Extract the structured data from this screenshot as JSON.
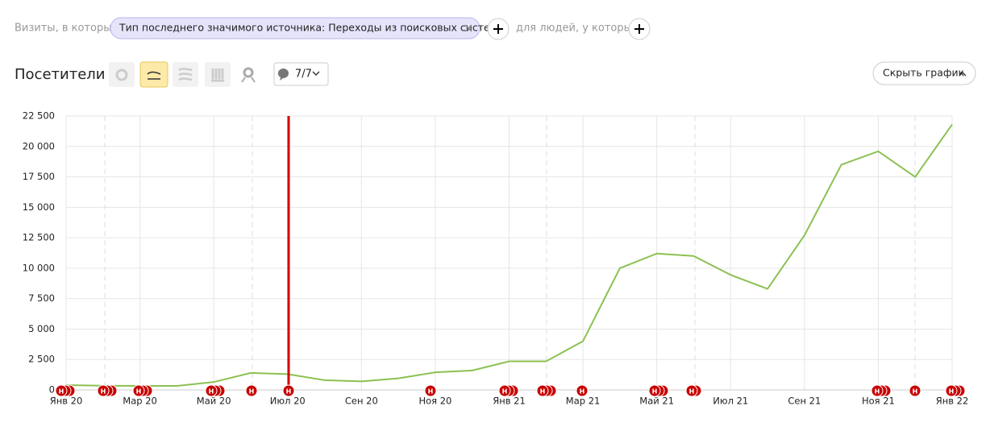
{
  "filters": {
    "visits_label": "Визиты, в которых",
    "condition": "Тип последнего значимого источника: Переходы из поисковых систем",
    "people_label": "для людей, у которых"
  },
  "toolbar": {
    "title": "Посетители",
    "annotations_count": "7/7",
    "hide_chart": "Скрыть график"
  },
  "annotation_marker": "Н",
  "chart_data": {
    "type": "line",
    "categories": [
      "Янв 20",
      null,
      "Мар 20",
      null,
      "Май 20",
      null,
      "Июл 20",
      null,
      "Сен 20",
      null,
      "Ноя 20",
      null,
      "Янв 21",
      null,
      "Мар 21",
      null,
      "Май 21",
      null,
      "Июл 21",
      null,
      "Сен 21",
      null,
      "Ноя 21",
      null,
      "Янв 22"
    ],
    "values": [
      400,
      350,
      330,
      330,
      650,
      1400,
      1300,
      800,
      700,
      950,
      1450,
      1600,
      2350,
      2350,
      4000,
      10000,
      11200,
      11000,
      9450,
      8300,
      12700,
      18500,
      19600,
      17500,
      21800
    ],
    "color": "#8cc152",
    "ylim": [
      0,
      22500
    ],
    "yticks": [
      0,
      {
        "value": 2500,
        "label": "2 500"
      },
      {
        "value": 5000,
        "label": "5 000"
      },
      {
        "value": 7500,
        "label": "7 500"
      },
      {
        "value": 10000,
        "label": "10 000"
      },
      {
        "value": 12500,
        "label": "12 500"
      },
      {
        "value": 15000,
        "label": "15 000"
      },
      {
        "value": 17500,
        "label": "17 500"
      },
      {
        "value": 20000,
        "label": "20 000"
      },
      {
        "value": 22500,
        "label": "22 500"
      }
    ],
    "grid": true
  }
}
